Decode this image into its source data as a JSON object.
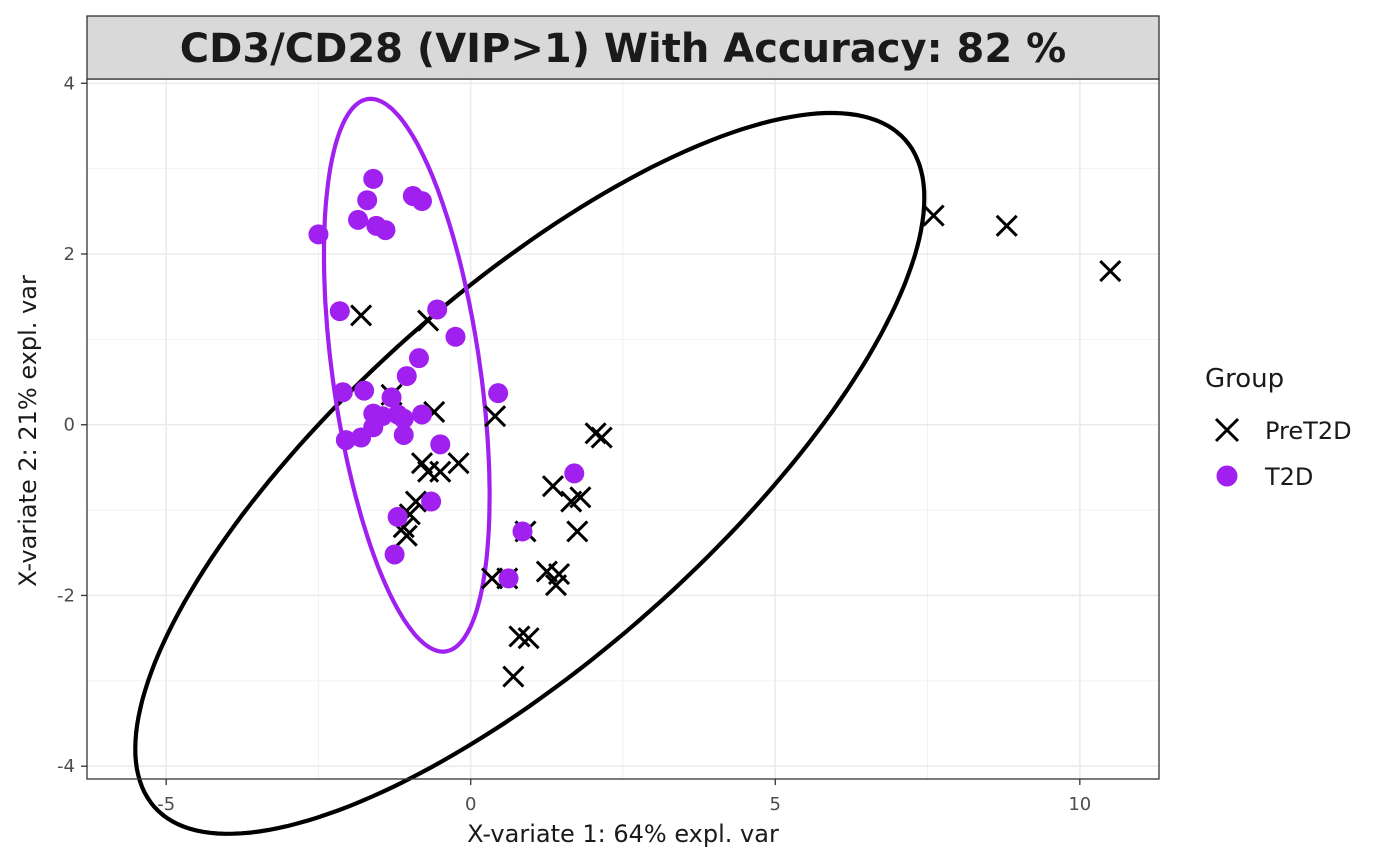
{
  "chart_data": {
    "type": "scatter",
    "title": "CD3/CD28 (VIP>1) With Accuracy: 82 %",
    "xlabel": "X-variate 1: 64% expl. var",
    "ylabel": "X-variate 2: 21% expl. var",
    "xlim": [
      -6.3,
      11.3
    ],
    "ylim": [
      -4.15,
      4.05
    ],
    "x_ticks": [
      -5,
      0,
      5,
      10
    ],
    "y_ticks": [
      -4,
      -2,
      0,
      2,
      4
    ],
    "x_tick_labels": [
      "-5",
      "0",
      "5",
      "10"
    ],
    "y_tick_labels": [
      "-4",
      "-2",
      "0",
      "2",
      "4"
    ],
    "grid": true,
    "legend": {
      "title": "Group",
      "position": "right",
      "entries": [
        {
          "label": "PreT2D",
          "marker": "cross",
          "color": "#000000"
        },
        {
          "label": "T2D",
          "marker": "circle",
          "color": "#a020f0"
        }
      ]
    },
    "series": [
      {
        "name": "PreT2D",
        "marker": "cross",
        "color": "#000000",
        "points": [
          [
            7.6,
            2.45
          ],
          [
            8.8,
            2.33
          ],
          [
            10.5,
            1.8
          ],
          [
            -1.8,
            1.28
          ],
          [
            -0.7,
            1.22
          ],
          [
            -1.3,
            0.35
          ],
          [
            -0.6,
            0.15
          ],
          [
            0.4,
            0.1
          ],
          [
            -0.8,
            -0.45
          ],
          [
            -0.7,
            -0.55
          ],
          [
            -0.5,
            -0.55
          ],
          [
            -0.2,
            -0.45
          ],
          [
            2.05,
            -0.1
          ],
          [
            2.15,
            -0.15
          ],
          [
            1.35,
            -0.72
          ],
          [
            1.65,
            -0.9
          ],
          [
            1.8,
            -0.85
          ],
          [
            1.75,
            -1.25
          ],
          [
            -0.9,
            -0.9
          ],
          [
            -1.0,
            -1.05
          ],
          [
            -1.1,
            -1.2
          ],
          [
            -1.05,
            -1.3
          ],
          [
            0.9,
            -1.25
          ],
          [
            0.35,
            -1.8
          ],
          [
            0.6,
            -1.8
          ],
          [
            1.25,
            -1.72
          ],
          [
            1.4,
            -1.88
          ],
          [
            1.45,
            -1.75
          ],
          [
            0.8,
            -2.48
          ],
          [
            0.95,
            -2.5
          ],
          [
            0.7,
            -2.95
          ]
        ]
      },
      {
        "name": "T2D",
        "marker": "circle",
        "color": "#a020f0",
        "points": [
          [
            -1.6,
            2.88
          ],
          [
            -0.95,
            2.68
          ],
          [
            -0.8,
            2.62
          ],
          [
            -1.7,
            2.63
          ],
          [
            -2.5,
            2.23
          ],
          [
            -1.85,
            2.4
          ],
          [
            -1.55,
            2.33
          ],
          [
            -1.4,
            2.28
          ],
          [
            -2.15,
            1.33
          ],
          [
            -0.55,
            1.35
          ],
          [
            -0.25,
            1.03
          ],
          [
            -0.85,
            0.78
          ],
          [
            -1.05,
            0.57
          ],
          [
            0.45,
            0.37
          ],
          [
            -2.1,
            0.38
          ],
          [
            -1.75,
            0.4
          ],
          [
            -1.3,
            0.32
          ],
          [
            -1.6,
            0.13
          ],
          [
            -1.45,
            0.1
          ],
          [
            -1.2,
            0.12
          ],
          [
            -0.8,
            0.12
          ],
          [
            -1.1,
            0.07
          ],
          [
            -1.6,
            -0.03
          ],
          [
            -1.1,
            -0.12
          ],
          [
            -2.05,
            -0.18
          ],
          [
            -1.8,
            -0.15
          ],
          [
            -0.5,
            -0.23
          ],
          [
            1.7,
            -0.57
          ],
          [
            -0.65,
            -0.9
          ],
          [
            -1.2,
            -1.08
          ],
          [
            0.85,
            -1.25
          ],
          [
            -1.25,
            -1.52
          ],
          [
            0.62,
            -1.8
          ]
        ]
      }
    ],
    "ellipses": [
      {
        "group": "PreT2D",
        "color": "#000000",
        "center": [
          0.97,
          -0.57
        ],
        "semi_axes": [
          7.35,
          2.4
        ],
        "angle_deg": 30
      },
      {
        "group": "T2D",
        "color": "#a020f0",
        "center": [
          -1.05,
          0.58
        ],
        "semi_axes": [
          3.3,
          1.2
        ],
        "angle_deg": -78
      }
    ]
  }
}
